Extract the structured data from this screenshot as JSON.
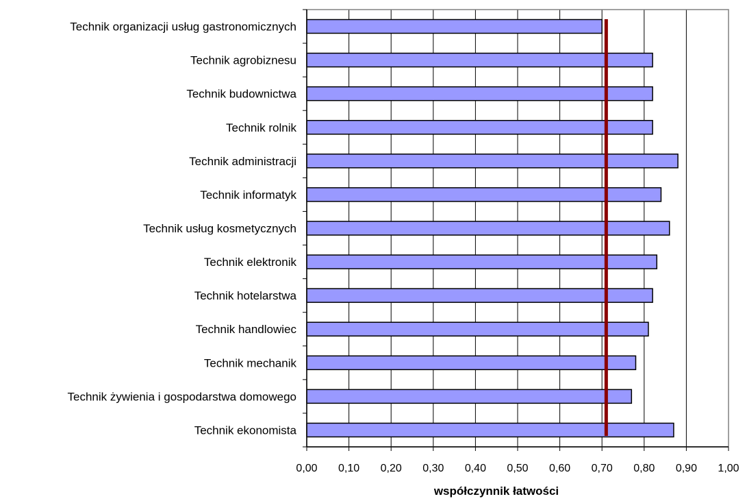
{
  "chart_data": {
    "type": "bar",
    "orientation": "horizontal",
    "title": "",
    "xlabel": "współczynnik łatwości",
    "ylabel": "",
    "categories": [
      "Technik organizacji usług gastronomicznych",
      "Technik agrobiznesu",
      "Technik budownictwa",
      "Technik rolnik",
      "Technik administracji",
      "Technik informatyk",
      "Technik usług kosmetycznych",
      "Technik elektronik",
      "Technik hotelarstwa",
      "Technik handlowiec",
      "Technik mechanik",
      "Technik żywienia i gospodarstwa domowego",
      "Technik ekonomista"
    ],
    "values": [
      0.7,
      0.82,
      0.82,
      0.82,
      0.88,
      0.84,
      0.86,
      0.83,
      0.82,
      0.81,
      0.78,
      0.77,
      0.87
    ],
    "reference_line": {
      "value": 0.71,
      "color": "#8b0000"
    },
    "xlim": [
      0.0,
      1.0
    ],
    "xticks": [
      "0,00",
      "0,10",
      "0,20",
      "0,30",
      "0,40",
      "0,50",
      "0,60",
      "0,70",
      "0,80",
      "0,90",
      "1,00"
    ],
    "grid": true,
    "legend": "none",
    "colors": {
      "bar_fill": "#9999ff",
      "bar_stroke": "#000000",
      "grid": "#000000",
      "axis_frame": "#808080"
    }
  }
}
